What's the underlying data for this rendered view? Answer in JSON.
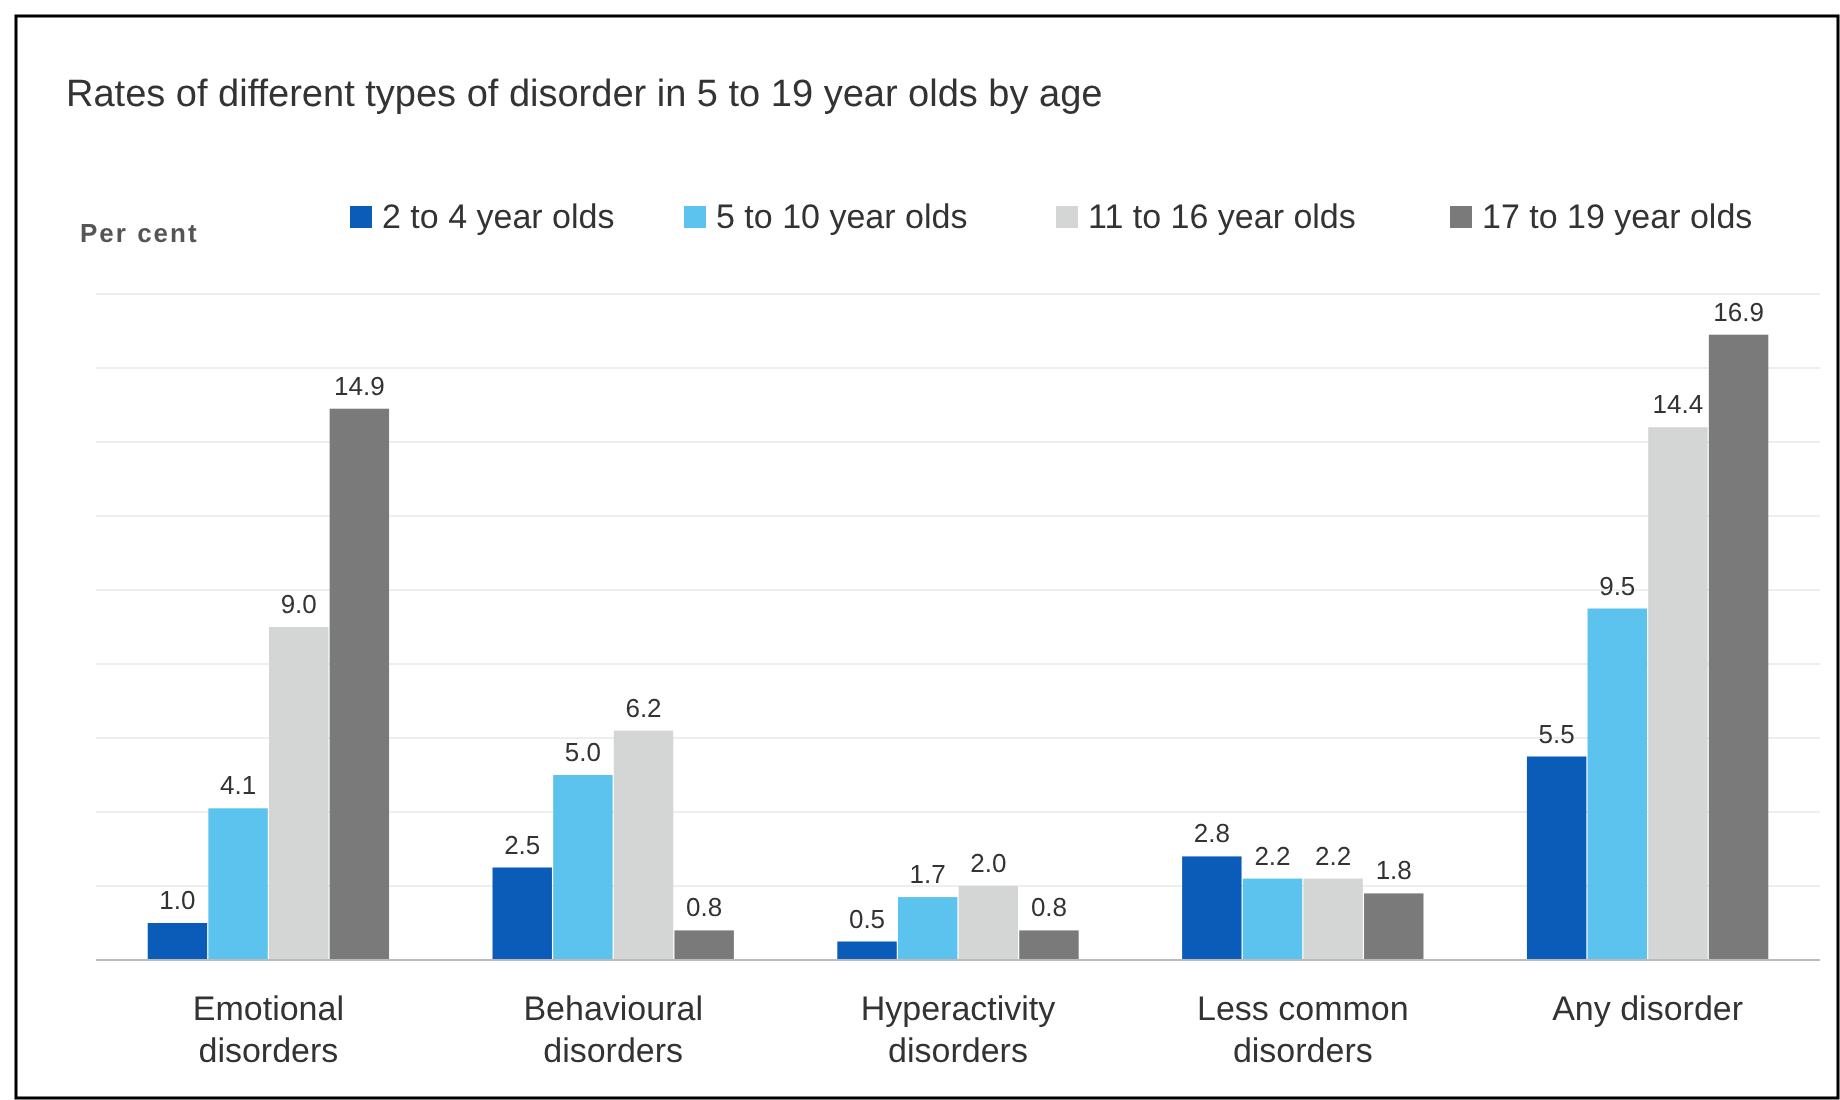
{
  "chart_data": {
    "type": "bar",
    "title": "Rates of different types of disorder in 5 to 19 year olds by age",
    "ylabel": "Per cent",
    "categories": [
      "Emotional disorders",
      "Behavioural disorders",
      "Hyperactivity disorders",
      "Less common disorders",
      "Any disorder"
    ],
    "series": [
      {
        "name": "2 to 4 year olds",
        "color": "#0a5cb8",
        "values": [
          1.0,
          2.5,
          0.5,
          2.8,
          5.5
        ],
        "value_labels": [
          "1.0",
          "2.5",
          "0.5",
          "2.8",
          "5.5"
        ]
      },
      {
        "name": "5 to 10 year olds",
        "color": "#5bc3ee",
        "values": [
          4.1,
          5.0,
          1.7,
          2.2,
          9.5
        ],
        "value_labels": [
          "4.1",
          "5.0",
          "1.7",
          "2.2",
          "9.5"
        ]
      },
      {
        "name": "11 to 16 year olds",
        "color": "#d4d6d6",
        "values": [
          9.0,
          6.2,
          2.0,
          2.2,
          14.4
        ],
        "value_labels": [
          "9.0",
          "6.2",
          "2.0",
          "2.2",
          "14.4"
        ]
      },
      {
        "name": "17 to 19 year olds",
        "color": "#7a7a7a",
        "values": [
          14.9,
          0.8,
          0.8,
          1.8,
          16.9
        ],
        "value_labels": [
          "14.9",
          "0.8",
          "0.8",
          "1.8",
          "16.9"
        ]
      }
    ],
    "ylim": [
      0,
      18
    ],
    "yticks": [
      {
        "value": 0,
        "label": null
      },
      {
        "value": 2,
        "label": null
      },
      {
        "value": 4,
        "label": null
      },
      {
        "value": 6,
        "label": null
      },
      {
        "value": 8,
        "label": null
      },
      {
        "value": 10,
        "label": null
      },
      {
        "value": 12,
        "label": null
      },
      {
        "value": 14,
        "label": null
      },
      {
        "value": 16,
        "label": null
      },
      {
        "value": 18,
        "label": null
      }
    ],
    "grid": "y",
    "legend": "top"
  }
}
